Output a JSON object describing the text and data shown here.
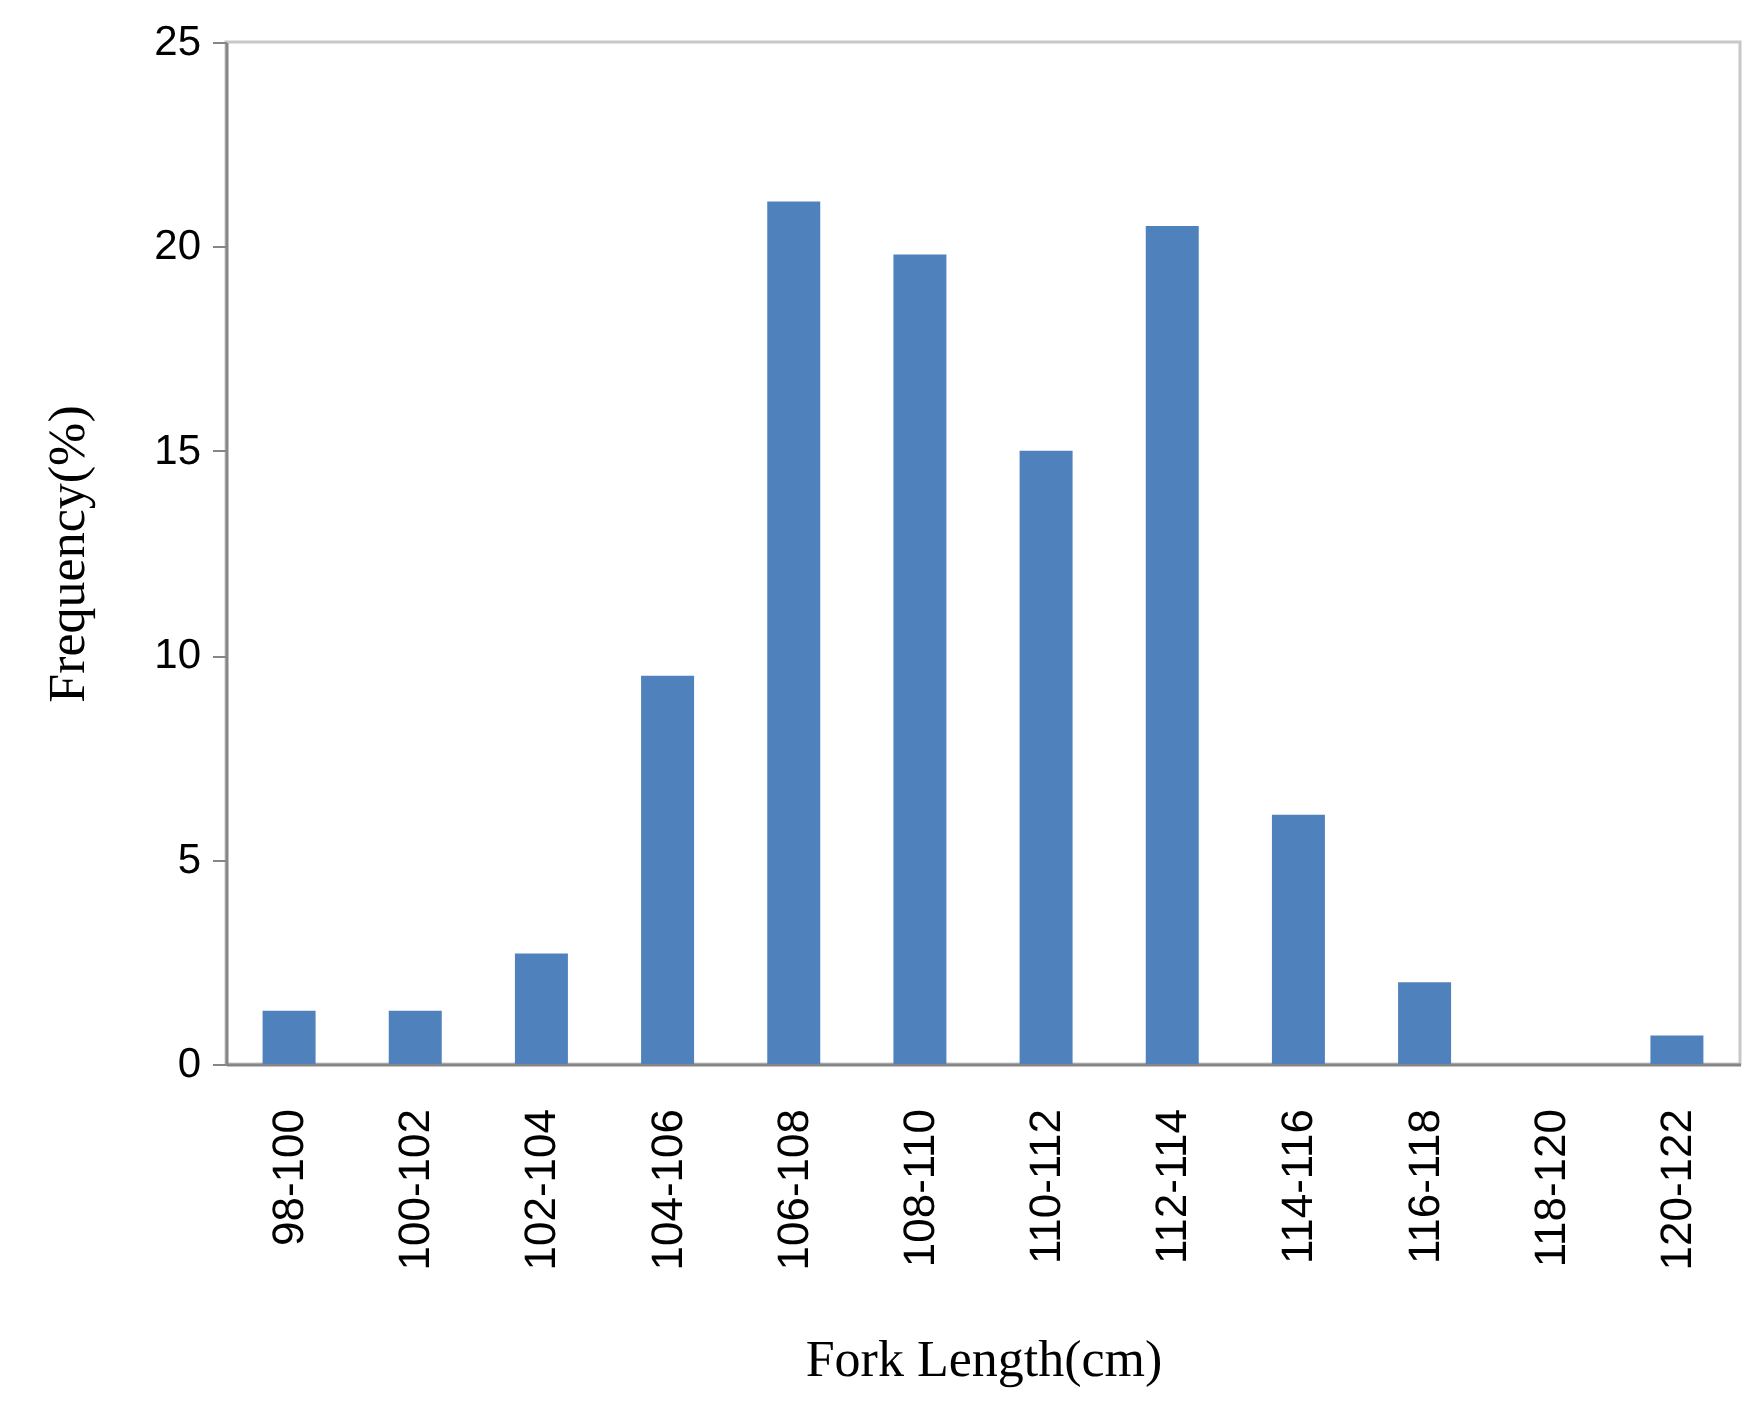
{
  "chart_data": {
    "type": "bar",
    "xlabel": "Fork Length(cm)",
    "ylabel": "Frequency(%)",
    "categories": [
      "98-100",
      "100-102",
      "102-104",
      "104-106",
      "106-108",
      "108-110",
      "110-112",
      "112-114",
      "114-116",
      "116-118",
      "118-120",
      "120-122"
    ],
    "values": [
      1.3,
      1.3,
      2.7,
      9.5,
      21.1,
      19.8,
      15.0,
      20.5,
      6.1,
      2.0,
      0,
      0.7
    ],
    "color": "#4f81bd",
    "ylim": [
      0,
      25
    ],
    "yticks": [
      0,
      5,
      10,
      15,
      20,
      25
    ]
  }
}
